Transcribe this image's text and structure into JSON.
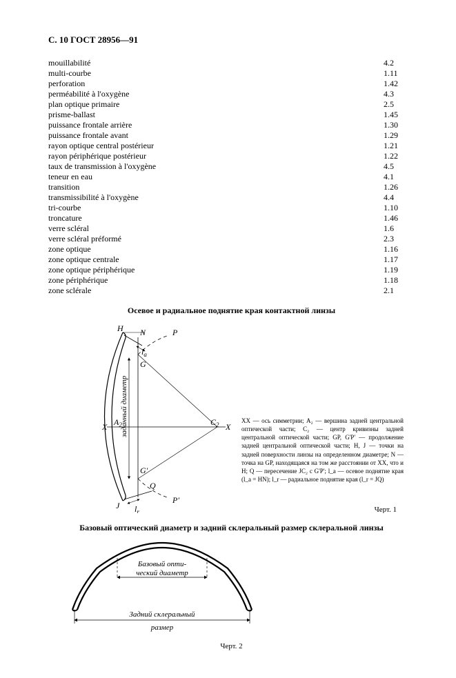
{
  "header": "С. 10 ГОСТ 28956—91",
  "terms": [
    {
      "label": "mouillabilité",
      "value": "4.2"
    },
    {
      "label": "multi-courbe",
      "value": "1.11"
    },
    {
      "label": "perforation",
      "value": "1.42"
    },
    {
      "label": "perméabilité à l'oxygène",
      "value": "4.3"
    },
    {
      "label": "plan optique primaire",
      "value": "2.5"
    },
    {
      "label": "prisme-ballast",
      "value": "1.45"
    },
    {
      "label": "puissance frontale arrière",
      "value": "1.30"
    },
    {
      "label": "puissance frontale avant",
      "value": "1.29"
    },
    {
      "label": "rayon optique central postérieur",
      "value": "1.21"
    },
    {
      "label": "rayon périphérique postérieur",
      "value": "1.22"
    },
    {
      "label": "taux de transmission à l'oxygène",
      "value": "4.5"
    },
    {
      "label": "teneur en eau",
      "value": "4.1"
    },
    {
      "label": "transition",
      "value": "1.26"
    },
    {
      "label": "transmissibilité à l'oxygène",
      "value": "4.4"
    },
    {
      "label": "tri-courbe",
      "value": "1.10"
    },
    {
      "label": "troncature",
      "value": "1.46"
    },
    {
      "label": "verre scléral",
      "value": "1.6"
    },
    {
      "label": "verre scléral préformé",
      "value": "2.3"
    },
    {
      "label": "zone optique",
      "value": "1.16"
    },
    {
      "label": "zone optique centrale",
      "value": "1.17"
    },
    {
      "label": "zone optique périphérique",
      "value": "1.19"
    },
    {
      "label": "zone périphérique",
      "value": "1.18"
    },
    {
      "label": "zone sclérale",
      "value": "2.1"
    }
  ],
  "fig1": {
    "title": "Осевое и радиальное поднятие края контактной линзы",
    "legend": "XX — ось симметрии; A₂ — вершина задней центральной оптической части; C₂ — центр кривизны задней центральной оптической части; GP, G'P' — продолжение задней центральной оптической части; H, J — точки на задней поверхности линзы на определенном диаметре; N — точка на GP, находящаяся на том же расстоянии от XX, что и H; Q — пересечение JC₂ с G'P'; l_a — осевое поднятие края (l_a = HN); l_r — радиальное поднятие края (l_r = JQ)",
    "caption": "Черт. 1",
    "labels": {
      "H": "H",
      "N": "N",
      "P": "P",
      "G": "G",
      "X_left": "X",
      "A2": "A",
      "A2_sub": "2",
      "C2": "C",
      "C2_sub": "2",
      "X_right": "X",
      "G_prime": "G'",
      "P_prime": "P'",
      "J": "J",
      "Q": "Q",
      "la": "l",
      "la_sub": "a",
      "lr": "l",
      "lr_sub": "r",
      "axis_text": "заданный диаметр"
    }
  },
  "fig2": {
    "title": "Базовый оптический диаметр и задний склеральный размер склеральной линзы",
    "label_top1": "Базовый опти-",
    "label_top2": "ческий диаметр",
    "label_bottom1": "Задний склеральный",
    "label_bottom2": "размер",
    "caption": "Черт. 2"
  }
}
